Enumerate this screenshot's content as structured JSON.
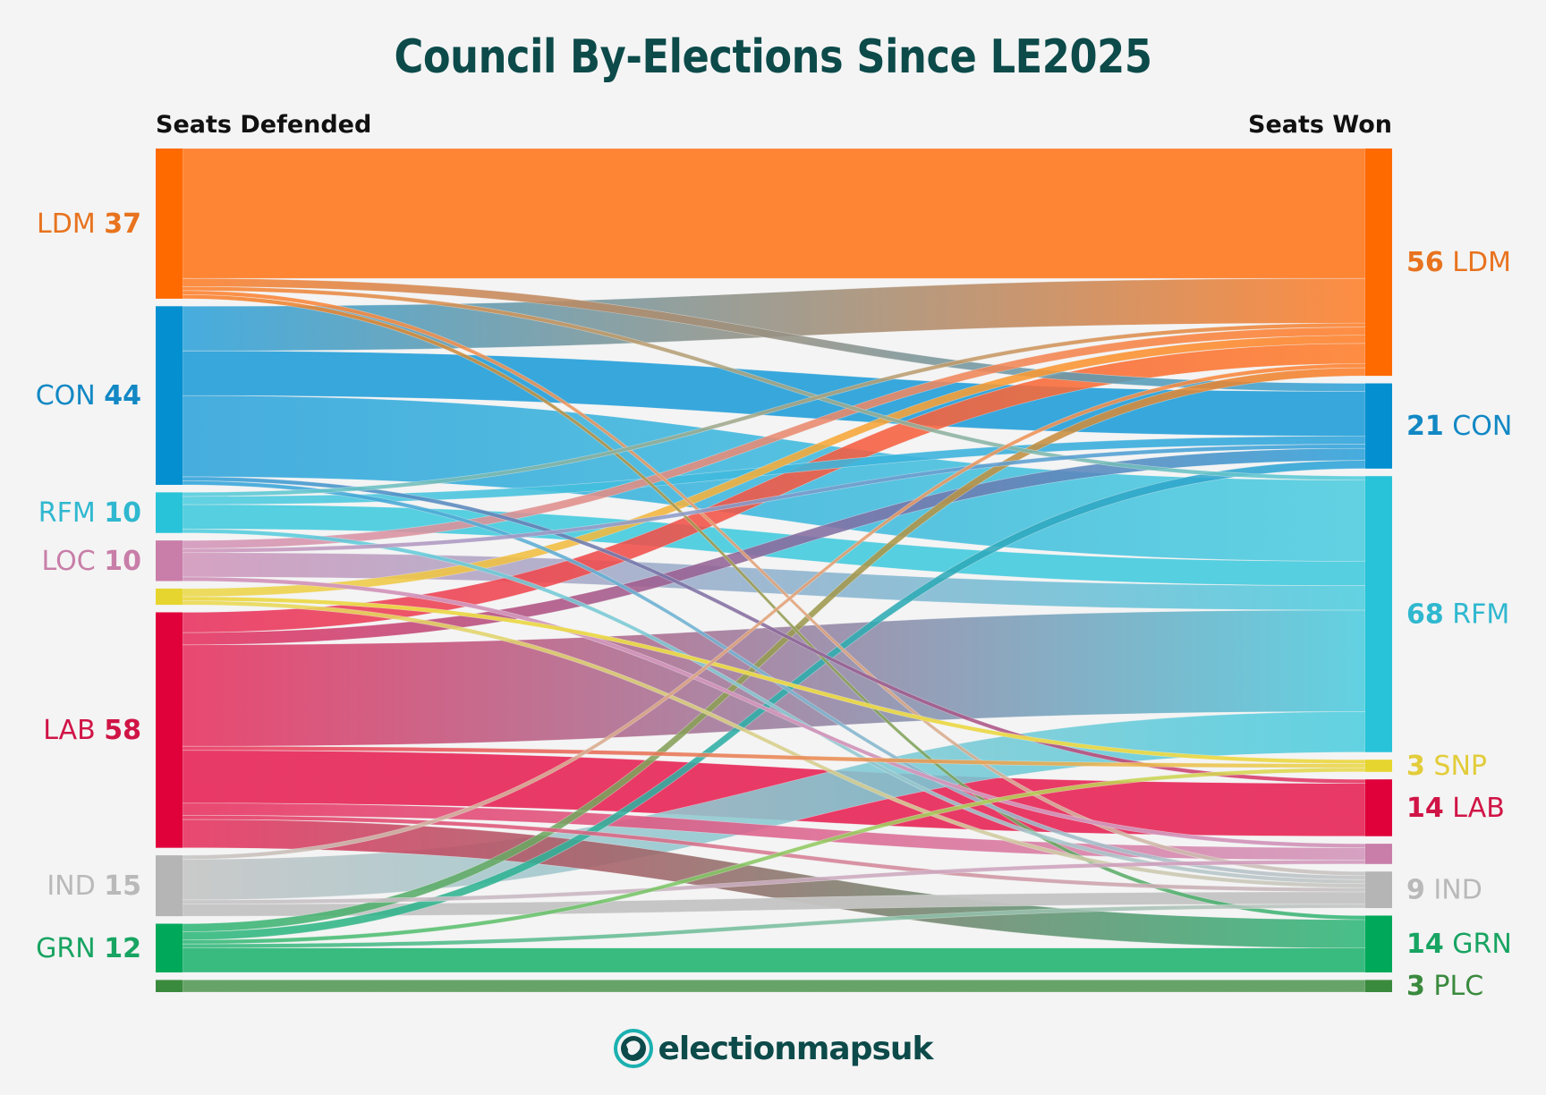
{
  "title": "Council By-Elections Since LE2025",
  "left_header": "Seats Defended",
  "right_header": "Seats Won",
  "logo_text": "electionmapsuk",
  "colors": {
    "title": "#0d4a4a",
    "background": "#f4f4f4"
  },
  "chart_data": {
    "type": "sankey",
    "title": "Council By-Elections Since LE2025",
    "left_axis_label": "Seats Defended",
    "right_axis_label": "Seats Won",
    "parties": {
      "LDM": {
        "node": "#ff6a00",
        "flow": "#ff7f2a",
        "label": "#e8731e"
      },
      "CON": {
        "node": "#0490d0",
        "flow": "#2ea3db",
        "label": "#1288c4"
      },
      "RFM": {
        "node": "#28c3d8",
        "flow": "#4ecddf",
        "label": "#2fb8cf"
      },
      "LOC": {
        "node": "#c87ea8",
        "flow": "#d296bb",
        "label": "#c87ea8"
      },
      "SNP": {
        "node": "#e6d52e",
        "flow": "#ebd94a",
        "label": "#e2cc3a"
      },
      "LAB": {
        "node": "#e0003a",
        "flow": "#e8305e",
        "label": "#d01446"
      },
      "IND": {
        "node": "#b5b5b5",
        "flow": "#c4c4c4",
        "label": "#b9b9b9"
      },
      "GRN": {
        "node": "#00a85a",
        "flow": "#2fb879",
        "label": "#18a462"
      },
      "PLC": {
        "node": "#3a8a3e",
        "flow": "#5f9f60",
        "label": "#3a8a3e"
      }
    },
    "left_nodes": [
      {
        "party": "LDM",
        "value": 37,
        "name": "LDM",
        "count": "37",
        "labeled": true
      },
      {
        "party": "CON",
        "value": 44,
        "name": "CON",
        "count": "44",
        "labeled": true
      },
      {
        "party": "RFM",
        "value": 10,
        "name": "RFM",
        "count": "10",
        "labeled": true
      },
      {
        "party": "LOC",
        "value": 10,
        "name": "LOC",
        "count": "10",
        "labeled": true
      },
      {
        "party": "SNP",
        "value": 4,
        "labeled": false
      },
      {
        "party": "LAB",
        "value": 58,
        "name": "LAB",
        "count": "58",
        "labeled": true
      },
      {
        "party": "IND",
        "value": 15,
        "name": "IND",
        "count": "15",
        "labeled": true
      },
      {
        "party": "GRN",
        "value": 12,
        "name": "GRN",
        "count": "12",
        "labeled": true
      },
      {
        "party": "PLC",
        "value": 3,
        "labeled": false
      }
    ],
    "right_nodes": [
      {
        "party": "LDM",
        "value": 56,
        "name": "LDM",
        "count": "56",
        "labeled": true
      },
      {
        "party": "CON",
        "value": 21,
        "name": "CON",
        "count": "21",
        "labeled": true
      },
      {
        "party": "RFM",
        "value": 68,
        "name": "RFM",
        "count": "68",
        "labeled": true
      },
      {
        "party": "SNP",
        "value": 3,
        "name": "SNP",
        "count": "3",
        "labeled": true
      },
      {
        "party": "LAB",
        "value": 14,
        "name": "LAB",
        "count": "14",
        "labeled": true
      },
      {
        "party": "LOC",
        "value": 5,
        "labeled": false
      },
      {
        "party": "IND",
        "value": 9,
        "name": "IND",
        "count": "9",
        "labeled": true
      },
      {
        "party": "GRN",
        "value": 14,
        "name": "GRN",
        "count": "14",
        "labeled": true
      },
      {
        "party": "PLC",
        "value": 3,
        "name": "PLC",
        "count": "3",
        "labeled": true
      }
    ],
    "flows": [
      {
        "from": "LDM",
        "to": "LDM",
        "value": 32
      },
      {
        "from": "LDM",
        "to": "CON",
        "value": 2
      },
      {
        "from": "LDM",
        "to": "RFM",
        "value": 1
      },
      {
        "from": "LDM",
        "to": "IND",
        "value": 1
      },
      {
        "from": "LDM",
        "to": "GRN",
        "value": 1
      },
      {
        "from": "CON",
        "to": "LDM",
        "value": 11
      },
      {
        "from": "CON",
        "to": "CON",
        "value": 11
      },
      {
        "from": "CON",
        "to": "RFM",
        "value": 20
      },
      {
        "from": "CON",
        "to": "LAB",
        "value": 1
      },
      {
        "from": "CON",
        "to": "IND",
        "value": 1
      },
      {
        "from": "RFM",
        "to": "LDM",
        "value": 1
      },
      {
        "from": "RFM",
        "to": "CON",
        "value": 2
      },
      {
        "from": "RFM",
        "to": "RFM",
        "value": 6
      },
      {
        "from": "RFM",
        "to": "IND",
        "value": 1
      },
      {
        "from": "LOC",
        "to": "LDM",
        "value": 2
      },
      {
        "from": "LOC",
        "to": "CON",
        "value": 1
      },
      {
        "from": "LOC",
        "to": "RFM",
        "value": 6
      },
      {
        "from": "LOC",
        "to": "LOC",
        "value": 1
      },
      {
        "from": "SNP",
        "to": "LDM",
        "value": 2
      },
      {
        "from": "SNP",
        "to": "SNP",
        "value": 1
      },
      {
        "from": "SNP",
        "to": "IND",
        "value": 1
      },
      {
        "from": "LAB",
        "to": "LDM",
        "value": 5
      },
      {
        "from": "LAB",
        "to": "CON",
        "value": 3
      },
      {
        "from": "LAB",
        "to": "RFM",
        "value": 25
      },
      {
        "from": "LAB",
        "to": "SNP",
        "value": 1
      },
      {
        "from": "LAB",
        "to": "LAB",
        "value": 13
      },
      {
        "from": "LAB",
        "to": "LOC",
        "value": 3
      },
      {
        "from": "LAB",
        "to": "IND",
        "value": 1
      },
      {
        "from": "LAB",
        "to": "GRN",
        "value": 7
      },
      {
        "from": "IND",
        "to": "LDM",
        "value": 1
      },
      {
        "from": "IND",
        "to": "RFM",
        "value": 10
      },
      {
        "from": "IND",
        "to": "LOC",
        "value": 1
      },
      {
        "from": "IND",
        "to": "IND",
        "value": 3
      },
      {
        "from": "GRN",
        "to": "LDM",
        "value": 2
      },
      {
        "from": "GRN",
        "to": "CON",
        "value": 2
      },
      {
        "from": "GRN",
        "to": "SNP",
        "value": 1
      },
      {
        "from": "GRN",
        "to": "IND",
        "value": 1
      },
      {
        "from": "GRN",
        "to": "GRN",
        "value": 6
      },
      {
        "from": "PLC",
        "to": "PLC",
        "value": 3
      }
    ]
  }
}
